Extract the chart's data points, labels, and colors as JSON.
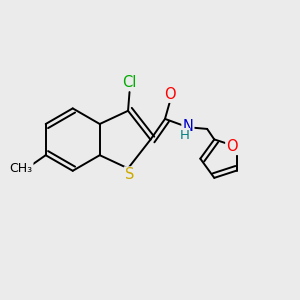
{
  "bg_color": "#ebebeb",
  "atom_colors": {
    "C": "#000000",
    "Cl": "#00aa00",
    "O": "#ff0000",
    "N": "#0000cc",
    "S": "#ccaa00",
    "H": "#008080"
  },
  "bond_color": "#000000",
  "bond_width": 1.4,
  "font_size_atom": 10.5
}
